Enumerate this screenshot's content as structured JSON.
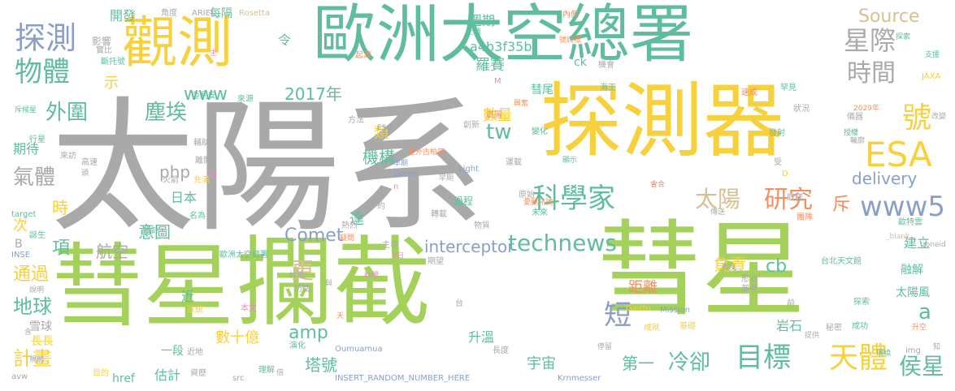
{
  "palette": {
    "gray": "#A9A9A9",
    "green": "#A3D15A",
    "teal": "#5FBD9E",
    "yellow": "#F7D03E",
    "blue": "#8A9FC8",
    "orange": "#F58E5E",
    "tan": "#D8BF92",
    "pink": "#E78AC3"
  },
  "words": [
    {
      "text": "太陽系",
      "color": "gray"
    },
    {
      "text": "彗星",
      "color": "green"
    },
    {
      "text": "攔截",
      "color": "green"
    },
    {
      "text": "彗星",
      "color": "green"
    },
    {
      "text": "探測器",
      "color": "yellow"
    },
    {
      "text": "歐洲太空總署",
      "color": "teal"
    },
    {
      "text": "觀測",
      "color": "yellow"
    },
    {
      "text": "探測",
      "color": "blue"
    },
    {
      "text": "物體",
      "color": "teal"
    },
    {
      "text": "星際",
      "color": "gray"
    },
    {
      "text": "時間",
      "color": "gray"
    },
    {
      "text": "號",
      "color": "yellow"
    },
    {
      "text": "科學家",
      "color": "teal"
    },
    {
      "text": "外圍",
      "color": "teal"
    },
    {
      "text": "塵埃",
      "color": "teal"
    },
    {
      "text": "ESA",
      "color": "yellow"
    },
    {
      "text": "太陽",
      "color": "tan"
    },
    {
      "text": "研究",
      "color": "orange"
    },
    {
      "text": "www5",
      "color": "blue"
    },
    {
      "text": "technews",
      "color": "teal"
    },
    {
      "text": "天體",
      "color": "yellow"
    },
    {
      "text": "目標",
      "color": "teal"
    },
    {
      "text": "冷卻",
      "color": "teal"
    },
    {
      "text": "侯星",
      "color": "teal"
    },
    {
      "text": "短",
      "color": "blue"
    },
    {
      "text": "更",
      "color": "tan"
    },
    {
      "text": "Source",
      "color": "tan"
    },
    {
      "text": "氣體",
      "color": "gray"
    },
    {
      "text": "www",
      "color": "teal"
    },
    {
      "text": "2017年",
      "color": "teal"
    },
    {
      "text": "Comet",
      "color": "blue"
    },
    {
      "text": "delivery",
      "color": "blue"
    },
    {
      "text": "地球",
      "color": "teal"
    },
    {
      "text": "通過",
      "color": "yellow"
    },
    {
      "text": "php",
      "color": "gray"
    },
    {
      "text": "意圖",
      "color": "teal"
    },
    {
      "text": "amp",
      "color": "teal"
    },
    {
      "text": "項",
      "color": "teal"
    },
    {
      "text": "時",
      "color": "yellow"
    },
    {
      "text": "計畫",
      "color": "yellow"
    },
    {
      "text": "機構",
      "color": "teal"
    },
    {
      "text": "類",
      "color": "yellow"
    },
    {
      "text": "tw",
      "color": "teal"
    },
    {
      "text": "a",
      "color": "teal"
    },
    {
      "text": "cb",
      "color": "teal"
    },
    {
      "text": "斥",
      "color": "orange"
    },
    {
      "text": "第一",
      "color": "teal"
    },
    {
      "text": "塔號",
      "color": "teal"
    },
    {
      "text": "期待",
      "color": "teal"
    },
    {
      "text": "航空",
      "color": "gray"
    },
    {
      "text": "日本",
      "color": "teal"
    },
    {
      "text": "數十億",
      "color": "yellow"
    },
    {
      "text": "interceptor",
      "color": "blue"
    },
    {
      "text": "負責",
      "color": "yellow"
    },
    {
      "text": "距離",
      "color": "orange"
    },
    {
      "text": "羅賽",
      "color": "teal"
    },
    {
      "text": "數量",
      "color": "yellow"
    },
    {
      "text": "a4b3f35b",
      "color": "teal"
    },
    {
      "text": "週期",
      "color": "teal"
    },
    {
      "text": "開發",
      "color": "teal"
    },
    {
      "text": "影響",
      "color": "gray"
    },
    {
      "text": "宇宙",
      "color": "teal"
    },
    {
      "text": "升溫",
      "color": "teal"
    },
    {
      "text": "建立",
      "color": "teal"
    },
    {
      "text": "融解",
      "color": "teal"
    },
    {
      "text": "太陽風",
      "color": "teal"
    },
    {
      "text": "岩石",
      "color": "teal"
    },
    {
      "text": "每隔",
      "color": "teal"
    },
    {
      "text": "令",
      "color": "teal"
    },
    {
      "text": "示",
      "color": "yellow"
    },
    {
      "text": "彗尾",
      "color": "teal"
    },
    {
      "text": "達",
      "color": "teal"
    },
    {
      "text": "過程",
      "color": "teal"
    },
    {
      "text": "估計",
      "color": "teal"
    },
    {
      "text": "一段",
      "color": "teal"
    },
    {
      "text": "近",
      "color": "teal"
    },
    {
      "text": "次",
      "color": "yellow"
    },
    {
      "text": "B",
      "color": "gray"
    },
    {
      "text": "雪球",
      "color": "gray"
    },
    {
      "text": "長長",
      "color": "yellow"
    },
    {
      "text": "href",
      "color": "teal"
    },
    {
      "text": "ck",
      "color": "teal"
    },
    {
      "text": "內側",
      "color": "orange"
    },
    {
      "text": "ARIEL",
      "color": "gray"
    },
    {
      "text": "Rosetta",
      "color": "tan"
    },
    {
      "text": "角度",
      "color": "gray"
    },
    {
      "text": "上週",
      "color": "teal"
    },
    {
      "text": "號目標",
      "color": "orange"
    },
    {
      "text": "起源",
      "color": "orange"
    },
    {
      "text": "歐洲太空總署",
      "color": "teal"
    },
    {
      "text": "INSERT_RANDOM_NUMBER_HERE",
      "color": "blue"
    },
    {
      "text": "Krnmesser",
      "color": "blue"
    },
    {
      "text": "Oumuamua",
      "color": "blue"
    },
    {
      "text": "Giotto",
      "color": "yellow"
    },
    {
      "text": "Mission",
      "color": "blue"
    },
    {
      "text": "Green",
      "color": "blue"
    },
    {
      "text": "Light",
      "color": "blue"
    },
    {
      "text": "ESO",
      "color": "blue"
    },
    {
      "text": "JAXA",
      "color": "yellow"
    },
    {
      "text": "target",
      "color": "teal"
    },
    {
      "text": "INSE",
      "color": "blue"
    },
    {
      "text": "avw",
      "color": "gray"
    },
    {
      "text": "src",
      "color": "gray"
    },
    {
      "text": "img",
      "color": "gray"
    },
    {
      "text": "zoneid",
      "color": "gray"
    },
    {
      "text": "2029年",
      "color": "orange"
    },
    {
      "text": "台北天文館",
      "color": "teal"
    },
    {
      "text": "歐特雲",
      "color": "teal"
    },
    {
      "text": "_blank",
      "color": "tan"
    },
    {
      "text": "成功",
      "color": "teal"
    },
    {
      "text": "探索",
      "color": "teal"
    },
    {
      "text": "成就",
      "color": "yellow"
    },
    {
      "text": "理解",
      "color": "teal"
    },
    {
      "text": "形狀",
      "color": "gray"
    },
    {
      "text": "部署",
      "color": "gray"
    },
    {
      "text": "秘密",
      "color": "gray"
    },
    {
      "text": "系統",
      "color": "yellow"
    },
    {
      "text": "本文",
      "color": "pink"
    },
    {
      "text": "期望",
      "color": "gray"
    },
    {
      "text": "防衛",
      "color": "gray"
    },
    {
      "text": "主導",
      "color": "gray"
    },
    {
      "text": "目的",
      "color": "yellow"
    },
    {
      "text": "演化",
      "color": "teal"
    },
    {
      "text": "近地",
      "color": "gray"
    },
    {
      "text": "資歷",
      "color": "gray"
    },
    {
      "text": "長度",
      "color": "gray"
    },
    {
      "text": "基礎",
      "color": "yellow"
    },
    {
      "text": "設計",
      "color": "teal"
    },
    {
      "text": "名為",
      "color": "teal"
    },
    {
      "text": "誕生",
      "color": "teal"
    },
    {
      "text": "熱烈",
      "color": "gray"
    },
    {
      "text": "物質",
      "color": "gray"
    },
    {
      "text": "轉載",
      "color": "gray"
    },
    {
      "text": "原始",
      "color": "gray"
    },
    {
      "text": "未來",
      "color": "teal"
    },
    {
      "text": "愛麗兒號",
      "color": "orange"
    },
    {
      "text": "團隊",
      "color": "orange"
    },
    {
      "text": "取樣",
      "color": "gray"
    },
    {
      "text": "行星",
      "color": "teal"
    },
    {
      "text": "火箭",
      "color": "gray"
    },
    {
      "text": "充滿",
      "color": "yellow"
    },
    {
      "text": "離開",
      "color": "gray"
    },
    {
      "text": "輔助",
      "color": "gray"
    },
    {
      "text": "高速",
      "color": "gray"
    },
    {
      "text": "來訪",
      "color": "gray"
    },
    {
      "text": "方法",
      "color": "gray"
    },
    {
      "text": "創新",
      "color": "gray"
    },
    {
      "text": "首圖",
      "color": "orange"
    },
    {
      "text": "變化",
      "color": "teal"
    },
    {
      "text": "運載",
      "color": "gray"
    },
    {
      "text": "海王",
      "color": "teal"
    },
    {
      "text": "亞利安",
      "color": "teal"
    },
    {
      "text": "斷托號",
      "color": "teal"
    },
    {
      "text": "實比",
      "color": "gray"
    },
    {
      "text": "來源",
      "color": "teal"
    },
    {
      "text": "機會",
      "color": "gray"
    },
    {
      "text": "速成",
      "color": "orange"
    },
    {
      "text": "罕見",
      "color": "teal"
    },
    {
      "text": "儀器",
      "color": "gray"
    },
    {
      "text": "發射",
      "color": "teal"
    },
    {
      "text": "狀況",
      "color": "gray"
    },
    {
      "text": "授權",
      "color": "teal"
    },
    {
      "text": "輪廓",
      "color": "gray"
    },
    {
      "text": "改變",
      "color": "gray"
    },
    {
      "text": "支援",
      "color": "teal"
    },
    {
      "text": "探索",
      "color": "teal"
    },
    {
      "text": "斥候星",
      "color": "teal"
    },
    {
      "text": "升空",
      "color": "orange"
    },
    {
      "text": "提供",
      "color": "gray"
    },
    {
      "text": "停留",
      "color": "gray"
    },
    {
      "text": "環繞",
      "color": "teal"
    },
    {
      "text": "寬度",
      "color": "gray"
    },
    {
      "text": "主",
      "color": "pink"
    },
    {
      "text": "約",
      "color": "gray"
    },
    {
      "text": "受",
      "color": "gray"
    },
    {
      "text": "前",
      "color": "gray"
    },
    {
      "text": "台",
      "color": "gray"
    },
    {
      "text": "n",
      "color": "pink"
    },
    {
      "text": "M",
      "color": "pink"
    },
    {
      "text": "B日",
      "color": "pink"
    },
    {
      "text": "D",
      "color": "yellow"
    },
    {
      "text": "頭",
      "color": "gray"
    },
    {
      "text": "雨",
      "color": "pink"
    },
    {
      "text": "含",
      "color": "gray"
    },
    {
      "text": "說明",
      "color": "gray"
    },
    {
      "text": "與",
      "color": "gray"
    },
    {
      "text": "天",
      "color": "orange"
    },
    {
      "text": "倍",
      "color": "gray"
    },
    {
      "text": "知",
      "color": "gray"
    },
    {
      "text": "星外古柏帶",
      "color": "orange"
    },
    {
      "text": "早期",
      "color": "blue"
    },
    {
      "text": "早期",
      "color": "gray"
    },
    {
      "text": "科學",
      "color": "pink"
    },
    {
      "text": "興奮",
      "color": "orange"
    },
    {
      "text": "疑問",
      "color": "orange"
    },
    {
      "text": "討論",
      "color": "gray"
    },
    {
      "text": "規則",
      "color": "gray"
    },
    {
      "text": "顯示",
      "color": "teal"
    },
    {
      "text": "傳送",
      "color": "gray"
    },
    {
      "text": "會合",
      "color": "orange"
    }
  ]
}
